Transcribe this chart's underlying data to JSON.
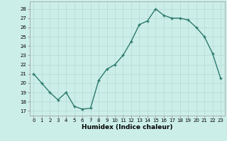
{
  "x": [
    0,
    1,
    2,
    3,
    4,
    5,
    6,
    7,
    8,
    9,
    10,
    11,
    12,
    13,
    14,
    15,
    16,
    17,
    18,
    19,
    20,
    21,
    22,
    23
  ],
  "y": [
    21,
    20,
    19,
    18.2,
    19,
    17.5,
    17.2,
    17.3,
    20.3,
    21.5,
    22,
    23,
    24.5,
    26.3,
    26.7,
    28,
    27.3,
    27,
    27,
    26.8,
    26,
    25,
    23.2,
    20.5
  ],
  "xlabel": "Humidex (Indice chaleur)",
  "ylim_min": 16.5,
  "ylim_max": 28.8,
  "xlim_min": -0.5,
  "xlim_max": 23.5,
  "yticks": [
    17,
    18,
    19,
    20,
    21,
    22,
    23,
    24,
    25,
    26,
    27,
    28
  ],
  "xticks": [
    0,
    1,
    2,
    3,
    4,
    5,
    6,
    7,
    8,
    9,
    10,
    11,
    12,
    13,
    14,
    15,
    16,
    17,
    18,
    19,
    20,
    21,
    22,
    23
  ],
  "line_color": "#2d7a6e",
  "marker": "+",
  "bg_color": "#cceee8",
  "grid_color": "#b8ddd8",
  "font_color": "#000000",
  "tick_fontsize": 5.0,
  "xlabel_fontsize": 6.5,
  "linewidth": 1.0,
  "markersize": 3.5,
  "markeredgewidth": 1.0
}
